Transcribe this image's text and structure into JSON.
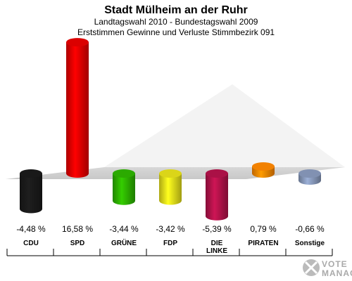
{
  "chart_data": {
    "type": "bar",
    "title": "Stadt Mülheim an der Ruhr",
    "subtitle_1": "Landtagswahl 2010 - Bundestagswahl 2009",
    "subtitle_2": "Erststimmen Gewinne und Verluste Stimmbezirk 091",
    "categories": [
      "CDU",
      "SPD",
      "GRÜNE",
      "FDP",
      "DIE LINKE",
      "PIRATEN",
      "Sonstige"
    ],
    "category_lines": [
      [
        "CDU"
      ],
      [
        "SPD"
      ],
      [
        "GRÜNE"
      ],
      [
        "FDP"
      ],
      [
        "DIE",
        "LINKE"
      ],
      [
        "PIRATEN"
      ],
      [
        "Sonstige"
      ]
    ],
    "values": [
      -4.48,
      16.58,
      -3.44,
      -3.42,
      -5.39,
      0.79,
      -0.66
    ],
    "value_labels": [
      "-4,48 %",
      "16,58 %",
      "-3,44 %",
      "-3,42 %",
      "-5,39 %",
      "0,79 %",
      "-0,66 %"
    ],
    "colors": [
      "#1a1a1a",
      "#e60000",
      "#2db300",
      "#e6e01a",
      "#b3124a",
      "#ff8800",
      "#8899bb"
    ],
    "ylim": [
      -6,
      17
    ],
    "grid": false
  },
  "branding": {
    "logo_line1": "VOTE",
    "logo_line2": "MANAGER"
  }
}
